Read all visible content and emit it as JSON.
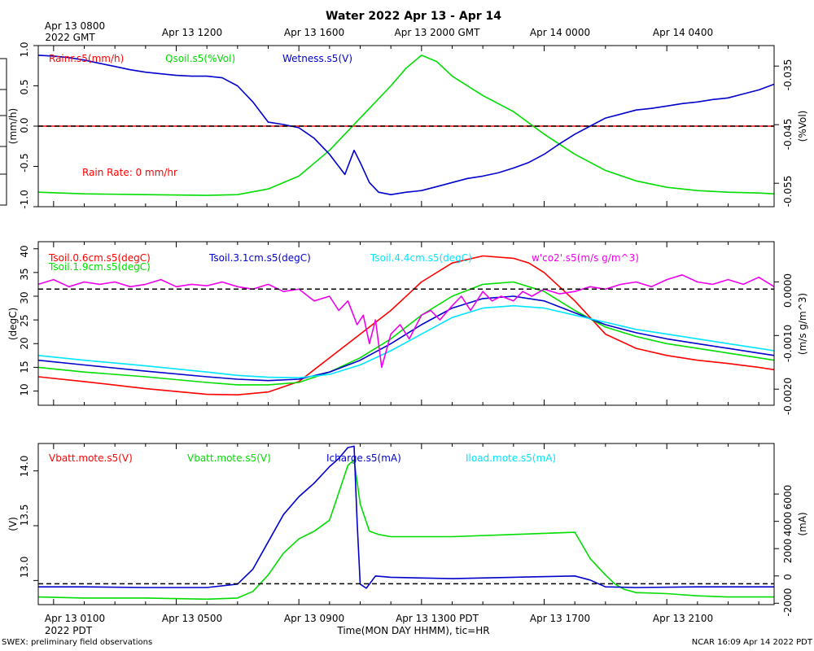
{
  "title": "Water 2022 Apr 13 - Apr 14",
  "x_axis": {
    "top_labels": [
      "Apr 13 0800",
      "Apr 13 1200",
      "Apr 13 1600",
      "Apr 13 2000 GMT",
      "Apr 14 0000",
      "Apr 14 0400"
    ],
    "top_corner": "2022 GMT",
    "bottom_labels": [
      "Apr 13 0100",
      "Apr 13 0500",
      "Apr 13 0900",
      "Apr 13 1300 PDT",
      "Apr 13 1700",
      "Apr 13 2100"
    ],
    "bottom_corner": "2022 PDT",
    "label": "Time(MON DAY HHMM), tic=HR"
  },
  "footer": {
    "left": "SWEX: preliminary field observations",
    "right": "NCAR 16:09 Apr 14 2022 PDT"
  },
  "colors": {
    "red": "#ff0000",
    "green": "#00dd00",
    "blue": "#0000cc",
    "cyan": "#00e5ff",
    "magenta": "#ee00ee"
  },
  "chart_data": [
    {
      "type": "line",
      "panel": "water",
      "x_unit": "hours since Apr 13 0000 PDT",
      "xlim": [
        0.5,
        24.5
      ],
      "y_left": {
        "label": "(mm/h)",
        "ticks": [
          "1.0",
          "0.5",
          "0.0",
          "-0.5",
          "-1.0"
        ],
        "ylim": [
          -1.0,
          1.0
        ]
      },
      "y_right": {
        "label": "(%Vol)",
        "ticks": [
          "-0.035",
          "-0.045",
          "-0.055"
        ],
        "ylim": [
          -0.059,
          -0.0315
        ]
      },
      "annotation": "Rain Rate: 0 mm/hr",
      "reference_line": 0,
      "series": [
        {
          "name": "Rainr.s5(mm/h)",
          "color": "red",
          "axis": "left",
          "x": [
            0.5,
            24.5
          ],
          "y": [
            0,
            0
          ]
        },
        {
          "name": "Qsoil.s5(%Vol)",
          "color": "green",
          "axis": "left",
          "x": [
            0.5,
            2,
            4,
            6,
            7,
            8,
            9,
            10,
            11,
            12,
            12.5,
            13,
            13.5,
            14,
            15,
            16,
            17,
            18,
            19,
            20,
            21,
            22,
            23,
            24,
            24.5
          ],
          "y": [
            -0.82,
            -0.84,
            -0.85,
            -0.86,
            -0.85,
            -0.78,
            -0.62,
            -0.3,
            0.1,
            0.5,
            0.72,
            0.88,
            0.8,
            0.62,
            0.38,
            0.18,
            -0.1,
            -0.35,
            -0.55,
            -0.68,
            -0.76,
            -0.8,
            -0.82,
            -0.83,
            -0.84
          ]
        },
        {
          "name": "Wetness.s5(V)",
          "color": "blue",
          "axis": "left",
          "x": [
            0.5,
            1,
            1.5,
            2,
            2.5,
            3,
            3.5,
            4,
            4.5,
            5,
            5.5,
            6,
            6.5,
            7,
            7.5,
            8,
            8.5,
            9,
            9.5,
            10,
            10.5,
            10.8,
            11,
            11.3,
            11.6,
            12,
            12.5,
            13,
            13.5,
            14,
            14.5,
            15,
            15.5,
            16,
            16.5,
            17,
            17.5,
            18,
            18.5,
            19,
            19.5,
            20,
            20.5,
            21,
            21.5,
            22,
            22.5,
            23,
            23.5,
            24,
            24.5
          ],
          "y": [
            0.88,
            0.87,
            0.85,
            0.82,
            0.78,
            0.74,
            0.7,
            0.67,
            0.65,
            0.63,
            0.62,
            0.62,
            0.6,
            0.5,
            0.3,
            0.05,
            0.02,
            -0.02,
            -0.15,
            -0.35,
            -0.6,
            -0.3,
            -0.45,
            -0.7,
            -0.82,
            -0.85,
            -0.82,
            -0.8,
            -0.75,
            -0.7,
            -0.65,
            -0.62,
            -0.58,
            -0.52,
            -0.45,
            -0.35,
            -0.22,
            -0.1,
            0.0,
            0.1,
            0.15,
            0.2,
            0.22,
            0.25,
            0.28,
            0.3,
            0.33,
            0.35,
            0.4,
            0.45,
            0.52
          ]
        }
      ]
    },
    {
      "type": "line",
      "panel": "soil-temperature",
      "x_unit": "hours since Apr 13 0000 PDT",
      "xlim": [
        0.5,
        24.5
      ],
      "y_left": {
        "label": "(degC)",
        "ticks": [
          "40",
          "35",
          "30",
          "25",
          "20",
          "15",
          "10"
        ],
        "ylim": [
          7,
          41.5
        ]
      },
      "y_right": {
        "label": "(m/s g/m^3)",
        "ticks": [
          "0.0000",
          "-0.0010",
          "-0.0020"
        ],
        "ylim": [
          -0.0023,
          0.00075
        ]
      },
      "reference_line": 31.5,
      "series": [
        {
          "name": "Tsoil.0.6cm.s5(degC)",
          "color": "red",
          "axis": "left",
          "x": [
            0.5,
            2,
            4,
            6,
            7,
            8,
            9,
            10,
            11,
            12,
            13,
            14,
            15,
            16,
            16.5,
            17,
            18,
            19,
            20,
            21,
            22,
            23,
            24,
            24.5
          ],
          "y": [
            13,
            12,
            10.5,
            9.3,
            9.2,
            9.8,
            12,
            17,
            22,
            27,
            33,
            37,
            38.5,
            38,
            37,
            35,
            29,
            22,
            19,
            17.5,
            16.5,
            15.8,
            15,
            14.5
          ]
        },
        {
          "name": "Tsoil.1.9cm.s5(degC)",
          "color": "green",
          "axis": "left",
          "x": [
            0.5,
            2,
            4,
            6,
            7,
            8,
            9,
            10,
            11,
            12,
            13,
            14,
            15,
            16,
            17,
            18,
            19,
            20,
            21,
            22,
            23,
            24,
            24.5
          ],
          "y": [
            15,
            14,
            13,
            11.8,
            11.3,
            11.3,
            11.8,
            14,
            17,
            21,
            26,
            30,
            32.5,
            33,
            31,
            27,
            23.5,
            21.5,
            20,
            19,
            18,
            17,
            16.5
          ]
        },
        {
          "name": "Tsoil.3.1cm.s5(degC)",
          "color": "blue",
          "axis": "left",
          "x": [
            0.5,
            2,
            4,
            6,
            7,
            8,
            9,
            10,
            11,
            12,
            13,
            14,
            15,
            16,
            17,
            18,
            19,
            20,
            21,
            22,
            23,
            24,
            24.5
          ],
          "y": [
            16.5,
            15.5,
            14.2,
            13,
            12.5,
            12.2,
            12.5,
            14,
            16.5,
            20,
            24,
            27.5,
            29.5,
            30,
            29,
            26.5,
            24,
            22.3,
            21,
            20,
            19,
            18,
            17.5
          ]
        },
        {
          "name": "Tsoil.4.4cm.s5(degC)",
          "color": "cyan",
          "axis": "left",
          "x": [
            0.5,
            2,
            4,
            6,
            7,
            8,
            9,
            10,
            11,
            12,
            13,
            14,
            15,
            16,
            17,
            18,
            19,
            20,
            21,
            22,
            23,
            24,
            24.5
          ],
          "y": [
            17.5,
            16.5,
            15.3,
            14,
            13.3,
            12.9,
            12.8,
            13.5,
            15.5,
            18.5,
            22,
            25.5,
            27.5,
            28,
            27.5,
            26,
            24.5,
            23,
            22,
            21,
            20,
            19,
            18.5
          ]
        },
        {
          "name": "w'co2'.s5(m/s g/m^3)",
          "color": "magenta",
          "axis": "left",
          "x": [
            0.5,
            1,
            1.5,
            2,
            2.5,
            3,
            3.5,
            4,
            4.5,
            5,
            5.5,
            6,
            6.5,
            7,
            7.5,
            8,
            8.5,
            9,
            9.5,
            10,
            10.3,
            10.6,
            10.9,
            11.1,
            11.3,
            11.5,
            11.7,
            12,
            12.3,
            12.6,
            13,
            13.3,
            13.6,
            14,
            14.3,
            14.6,
            15,
            15.3,
            15.6,
            16,
            16.3,
            16.6,
            17,
            17.5,
            18,
            18.5,
            19,
            19.5,
            20,
            20.5,
            21,
            21.5,
            22,
            22.5,
            23,
            23.5,
            24,
            24.5
          ],
          "y": [
            32.5,
            33.5,
            32,
            33,
            32.5,
            33,
            32,
            32.5,
            33.5,
            32,
            32.5,
            32.2,
            33,
            32,
            31.5,
            32.5,
            31,
            31.5,
            29,
            30,
            27,
            29,
            24,
            26,
            20,
            25,
            15,
            22,
            24,
            21,
            26,
            27,
            25,
            28,
            30,
            27,
            31,
            29,
            30,
            29,
            31,
            30,
            31.5,
            30.5,
            31,
            32,
            31.5,
            32.5,
            33,
            32,
            33.5,
            34.5,
            33,
            32.5,
            33.5,
            32.5,
            34,
            32
          ]
        }
      ]
    },
    {
      "type": "line",
      "panel": "power",
      "x_unit": "hours since Apr 13 0000 PDT",
      "xlim": [
        0.5,
        24.5
      ],
      "y_left": {
        "label": "(V)",
        "ticks": [
          "14.0",
          "13.5",
          "13.0"
        ],
        "ylim": [
          12.78,
          14.25
        ]
      },
      "y_right": {
        "label": "(mA)",
        "ticks": [
          "6000",
          "4000",
          "2000",
          "0",
          "-2000"
        ],
        "ylim": [
          -2100,
          9700
        ]
      },
      "reference_line": 12.97,
      "series": [
        {
          "name": "Vbatt.mote.s5(V)",
          "color": "red",
          "axis": "left",
          "x": [],
          "y": []
        },
        {
          "name": "Vbatt.mote.s5(V)",
          "color": "green",
          "axis": "left",
          "x": [
            0.5,
            2,
            4,
            6,
            7,
            7.5,
            8,
            8.5,
            9,
            9.5,
            10,
            10.3,
            10.6,
            10.8,
            11,
            11.3,
            11.6,
            12,
            14,
            16,
            17,
            18,
            18.5,
            19,
            19.3,
            19.6,
            20,
            21,
            22,
            23,
            24,
            24.5
          ],
          "y": [
            12.85,
            12.84,
            12.84,
            12.83,
            12.84,
            12.9,
            13.05,
            13.25,
            13.38,
            13.45,
            13.55,
            13.8,
            14.05,
            14.1,
            13.7,
            13.45,
            13.42,
            13.4,
            13.4,
            13.42,
            13.43,
            13.44,
            13.2,
            13.05,
            12.97,
            12.92,
            12.89,
            12.88,
            12.86,
            12.85,
            12.85,
            12.85
          ]
        },
        {
          "name": "Icharge.s5(mA)",
          "color": "blue",
          "axis": "right",
          "x": [
            0.5,
            2,
            4,
            6,
            7,
            7.5,
            8,
            8.5,
            9,
            9.5,
            10,
            10.3,
            10.6,
            10.8,
            10.9,
            11,
            11.2,
            11.5,
            12,
            14,
            16,
            18,
            18.5,
            19,
            20,
            22,
            24,
            24.5
          ],
          "y": [
            -800,
            -800,
            -850,
            -850,
            -600,
            500,
            2500,
            4500,
            5800,
            6800,
            8000,
            8600,
            9400,
            9500,
            4000,
            -600,
            -900,
            0,
            -100,
            -200,
            -100,
            0,
            -300,
            -800,
            -850,
            -800,
            -800,
            -800
          ]
        },
        {
          "name": "Iload.mote.s5(mA)",
          "color": "cyan",
          "axis": "right",
          "x": [],
          "y": []
        }
      ]
    }
  ]
}
